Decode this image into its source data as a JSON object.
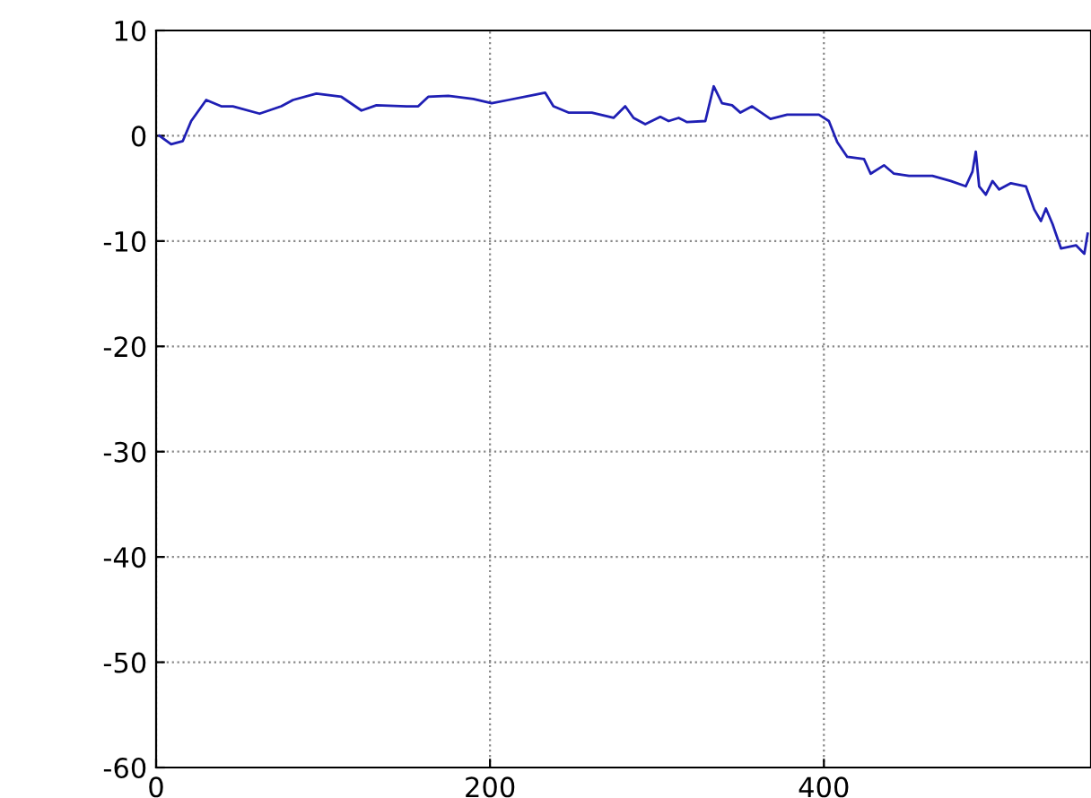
{
  "chart_data": {
    "type": "line",
    "x": [
      2,
      9,
      16,
      21,
      30,
      39,
      46,
      62,
      75,
      82,
      96,
      111,
      123,
      132,
      150,
      157,
      163,
      175,
      190,
      201,
      211,
      227,
      233,
      238,
      247,
      261,
      274,
      281,
      286,
      293,
      302,
      307,
      313,
      318,
      329,
      334,
      339,
      345,
      350,
      357,
      368,
      378,
      397,
      403,
      408,
      414,
      424,
      428,
      433,
      436,
      442,
      451,
      465,
      476,
      485,
      489,
      491,
      493,
      497,
      501,
      505,
      512,
      521,
      526,
      530,
      533,
      537,
      542,
      551,
      556,
      558
    ],
    "series": [
      {
        "color": "#1f1fb4",
        "values": [
          0,
          -0.8,
          -0.5,
          1.4,
          3.4,
          2.8,
          2.8,
          2.1,
          2.8,
          3.4,
          4.0,
          3.7,
          2.4,
          2.9,
          2.8,
          2.8,
          3.7,
          3.8,
          3.5,
          3.1,
          3.4,
          3.9,
          4.1,
          2.8,
          2.2,
          2.2,
          1.7,
          2.8,
          1.7,
          1.1,
          1.8,
          1.4,
          1.7,
          1.3,
          1.4,
          4.7,
          3.1,
          2.9,
          2.2,
          2.8,
          1.6,
          2.0,
          2.0,
          1.4,
          -0.6,
          -2.0,
          -2.2,
          -3.6,
          -3.1,
          -2.8,
          -3.6,
          -3.8,
          -3.8,
          -4.3,
          -4.8,
          -3.4,
          -1.5,
          -4.8,
          -5.6,
          -4.3,
          -5.1,
          -4.5,
          -4.8,
          -7.0,
          -8.1,
          -6.9,
          -8.4,
          -10.7,
          -10.4,
          -11.2,
          -9.3
        ]
      }
    ],
    "xlim": [
      0,
      560
    ],
    "ylim": [
      -60,
      10
    ],
    "xticks": [
      0,
      200,
      400
    ],
    "yticks": [
      -60,
      -50,
      -40,
      -30,
      -20,
      -10,
      0,
      10
    ],
    "grid": true,
    "line_style": "solid",
    "marker": "none"
  }
}
